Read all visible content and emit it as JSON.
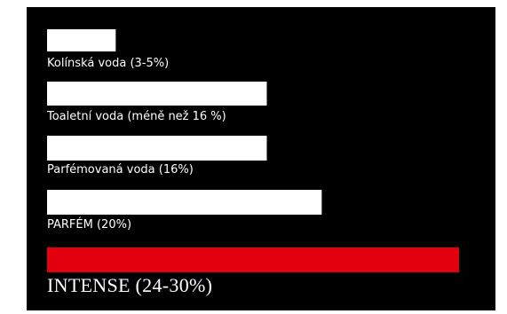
{
  "chart_data": {
    "type": "bar",
    "orientation": "horizontal",
    "categories": [
      "Kolínská voda (3-5%)",
      "Toaletní voda (méně než 16 %)",
      "Parfémovaná voda (16%)",
      "PARFÉM (20%)",
      "INTENSE (24-30%)"
    ],
    "values": [
      5,
      16,
      16,
      20,
      30
    ],
    "xlim": [
      0,
      30
    ],
    "grid": false,
    "background_color": "#000000",
    "bar_color": "#ffffff",
    "highlight_color": "#e2000f",
    "highlight_index": 4,
    "label_color": "#ffffff"
  }
}
